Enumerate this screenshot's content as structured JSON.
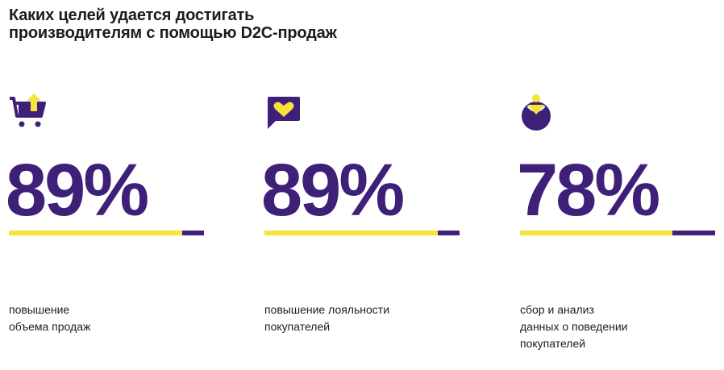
{
  "page": {
    "title": "Каких целей удается достигать\nпроизводителям с помощью D2C-продаж"
  },
  "colors": {
    "accent": "#3e2079",
    "highlight": "#f7e33a",
    "text": "#1c1c1c"
  },
  "chart_data": {
    "type": "bar",
    "title": "Каких целей удается достигать\nпроизводителям с помощью D2C-продаж",
    "categories": [
      "повышение\nобъема продаж",
      "повышение лояльности\nпокупателей",
      "сбор и анализ\nданных о поведении\nпокупателей"
    ],
    "values": [
      89,
      89,
      78
    ],
    "value_labels": [
      "89%",
      "89%",
      "78%"
    ],
    "ylim": [
      0,
      100
    ],
    "icons": [
      "cart-upload-icon",
      "heart-message-icon",
      "person-pie-icon"
    ],
    "grid": false
  }
}
